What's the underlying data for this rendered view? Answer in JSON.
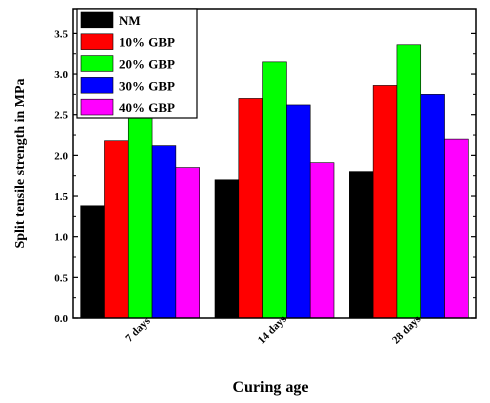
{
  "chart_data": {
    "type": "bar",
    "categories": [
      "7 days",
      "14 days",
      "28 days"
    ],
    "series": [
      {
        "name": "NM",
        "color": "#000000",
        "values": [
          1.38,
          1.7,
          1.8
        ]
      },
      {
        "name": "10% GBP",
        "color": "#ff0000",
        "values": [
          2.18,
          2.7,
          2.86
        ]
      },
      {
        "name": "20% GBP",
        "color": "#00ff00",
        "values": [
          2.55,
          3.15,
          3.36
        ]
      },
      {
        "name": "30% GBP",
        "color": "#0000ff",
        "values": [
          2.12,
          2.62,
          2.75
        ]
      },
      {
        "name": "40% GBP",
        "color": "#ff00ff",
        "values": [
          1.85,
          1.91,
          2.2
        ]
      }
    ],
    "xlabel": "Curing age",
    "ylabel": "Split tensile strength in MPa",
    "ylim": [
      0.0,
      3.8
    ],
    "yticks": [
      "0.0",
      "0.5",
      "1.0",
      "1.5",
      "2.0",
      "2.5",
      "3.0",
      "3.5"
    ],
    "legend_position": "top-left",
    "grid": false
  }
}
